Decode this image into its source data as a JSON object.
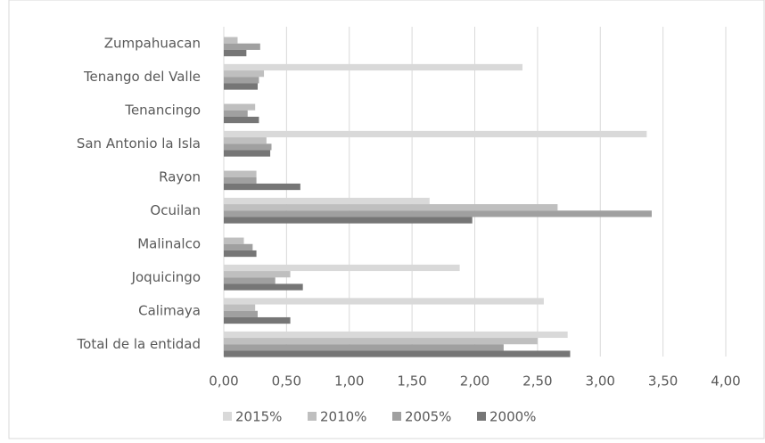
{
  "chart_data": {
    "type": "hbar",
    "categories": [
      "Zumpahuacan",
      "Tenango del Valle",
      "Tenancingo",
      "San Antonio la Isla",
      "Rayon",
      "Ocuilan",
      "Malinalco",
      "Joquicingo",
      "Calimaya",
      "Total de la entidad"
    ],
    "series": [
      {
        "name": "2015%",
        "color": "#d9d9d9",
        "values": [
          0,
          2.38,
          0,
          3.37,
          0,
          1.64,
          0,
          1.88,
          2.55,
          2.74
        ]
      },
      {
        "name": "2010%",
        "color": "#bfbfbf",
        "values": [
          0.11,
          0.32,
          0.25,
          0.34,
          0.26,
          2.66,
          0.16,
          0.53,
          0.25,
          2.5
        ]
      },
      {
        "name": "2005%",
        "color": "#a0a0a0",
        "values": [
          0.29,
          0.28,
          0.19,
          0.38,
          0.26,
          3.41,
          0.23,
          0.41,
          0.27,
          2.23
        ]
      },
      {
        "name": "2000%",
        "color": "#767676",
        "values": [
          0.18,
          0.27,
          0.28,
          0.37,
          0.61,
          1.98,
          0.26,
          0.63,
          0.53,
          2.76
        ]
      }
    ],
    "xlim": [
      0,
      4
    ],
    "xticks": [
      {
        "value": 0,
        "label": "0,00"
      },
      {
        "value": 0.5,
        "label": "0,50"
      },
      {
        "value": 1,
        "label": "1,00"
      },
      {
        "value": 1.5,
        "label": "1,50"
      },
      {
        "value": 2,
        "label": "2,00"
      },
      {
        "value": 2.5,
        "label": "2,50"
      },
      {
        "value": 3,
        "label": "3,00"
      },
      {
        "value": 3.5,
        "label": "3,50"
      },
      {
        "value": 4,
        "label": "4,00"
      }
    ],
    "grid": true,
    "legend": "bottom"
  }
}
